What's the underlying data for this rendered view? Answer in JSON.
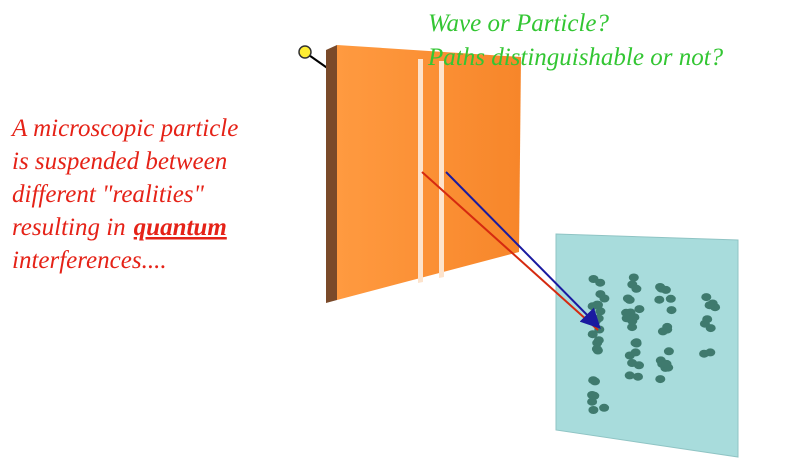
{
  "question": {
    "lines": [
      "Wave or Particle?",
      "Paths distinguishable or not?"
    ]
  },
  "caption": {
    "lines": [
      "A microscopic  particle",
      " is suspended between",
      "different \"realities\"",
      "resulting in",
      "interferences...."
    ],
    "emphasis": "quantum"
  }
}
